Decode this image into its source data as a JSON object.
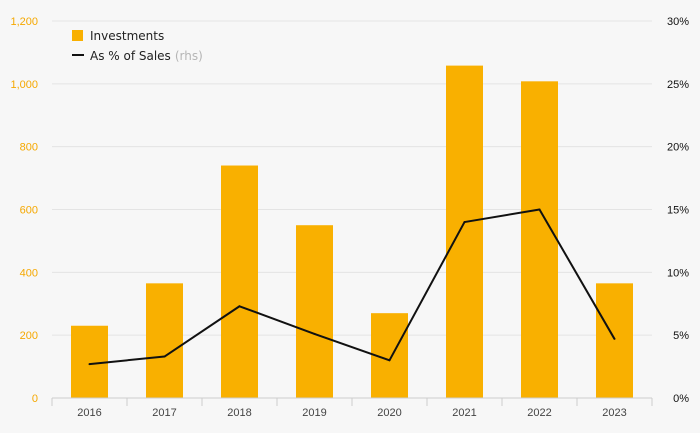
{
  "chart_data": {
    "type": "bar",
    "categories": [
      "2016",
      "2017",
      "2018",
      "2019",
      "2020",
      "2021",
      "2022",
      "2023"
    ],
    "series": [
      {
        "name": "Investments",
        "type": "bar",
        "axis": "left",
        "color": "#f9b000",
        "values": [
          230,
          365,
          740,
          550,
          270,
          1058,
          1008,
          365
        ]
      },
      {
        "name": "As % of Sales",
        "name_suffix": "(rhs)",
        "type": "line",
        "axis": "right",
        "color": "#111111",
        "values": [
          2.7,
          3.3,
          7.3,
          5.1,
          3.0,
          14.0,
          15.0,
          4.7
        ]
      }
    ],
    "y_left": {
      "min": 0,
      "max": 1200,
      "ticks": [
        0,
        200,
        400,
        600,
        800,
        1000,
        1200
      ],
      "tick_labels": [
        "0",
        "200",
        "400",
        "600",
        "800",
        "1,000",
        "1,200"
      ],
      "color": "#f5a800"
    },
    "y_right": {
      "min": 0,
      "max": 30,
      "ticks": [
        0,
        5,
        10,
        15,
        20,
        25,
        30
      ],
      "tick_labels": [
        "0%",
        "5%",
        "10%",
        "15%",
        "20%",
        "25%",
        "30%"
      ]
    },
    "grid": true,
    "legend_position": "top-left"
  }
}
